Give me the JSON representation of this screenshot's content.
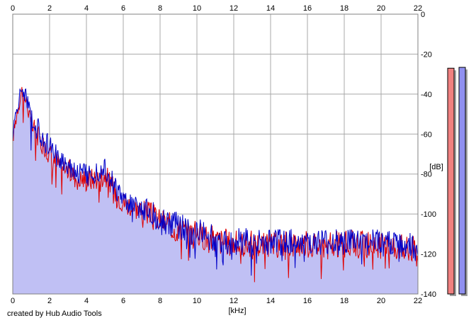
{
  "chart_data": {
    "type": "area",
    "xlabel": "[kHz]",
    "ylabel": "[dB]",
    "xlim": [
      0,
      22
    ],
    "ylim": [
      -140,
      0
    ],
    "x_ticks": [
      "0",
      "2",
      "4",
      "6",
      "8",
      "10",
      "12",
      "14",
      "16",
      "18",
      "20",
      "22"
    ],
    "y_ticks": [
      "0",
      "-20",
      "-40",
      "-60",
      "-80",
      "-100",
      "-120",
      "-140"
    ],
    "grid": true,
    "series": [
      {
        "color": "#e00000",
        "x": [
          0,
          0.25,
          0.5,
          0.75,
          1,
          1.5,
          2,
          2.5,
          3,
          3.5,
          4,
          4.5,
          5,
          5.5,
          6,
          6.5,
          7,
          7.5,
          8,
          8.5,
          9,
          9.5,
          10,
          11,
          12,
          13,
          14,
          15,
          16,
          17,
          18,
          19,
          20,
          21,
          22
        ],
        "values": [
          -62,
          -48,
          -38,
          -44,
          -55,
          -63,
          -70,
          -75,
          -78,
          -82,
          -83,
          -82,
          -80,
          -88,
          -94,
          -96,
          -98,
          -100,
          -103,
          -106,
          -107,
          -109,
          -110,
          -113,
          -115,
          -115,
          -116,
          -115,
          -115,
          -116,
          -115,
          -115,
          -116,
          -116,
          -118
        ]
      },
      {
        "color": "#0000c8",
        "x": [
          0,
          0.25,
          0.5,
          0.75,
          1,
          1.5,
          2,
          2.5,
          3,
          3.5,
          4,
          4.5,
          5,
          5.5,
          6,
          6.5,
          7,
          7.5,
          8,
          8.5,
          9,
          9.5,
          10,
          11,
          12,
          13,
          14,
          15,
          16,
          17,
          18,
          19,
          20,
          21,
          22
        ],
        "values": [
          -60,
          -46,
          -37,
          -42,
          -52,
          -60,
          -67,
          -72,
          -75,
          -79,
          -80,
          -79,
          -76,
          -86,
          -93,
          -95,
          -97,
          -99,
          -102,
          -105,
          -106,
          -108,
          -109,
          -112,
          -114,
          -114,
          -115,
          -114,
          -114,
          -115,
          -114,
          -114,
          -115,
          -115,
          -117
        ]
      }
    ],
    "fill_color": "#c0c0f4",
    "level_meters": [
      {
        "color": "#f08080",
        "level_db": -24
      },
      {
        "color": "#9090f0",
        "level_db": -22
      }
    ]
  },
  "footer": {
    "credit": "created by Hub Audio Tools"
  }
}
